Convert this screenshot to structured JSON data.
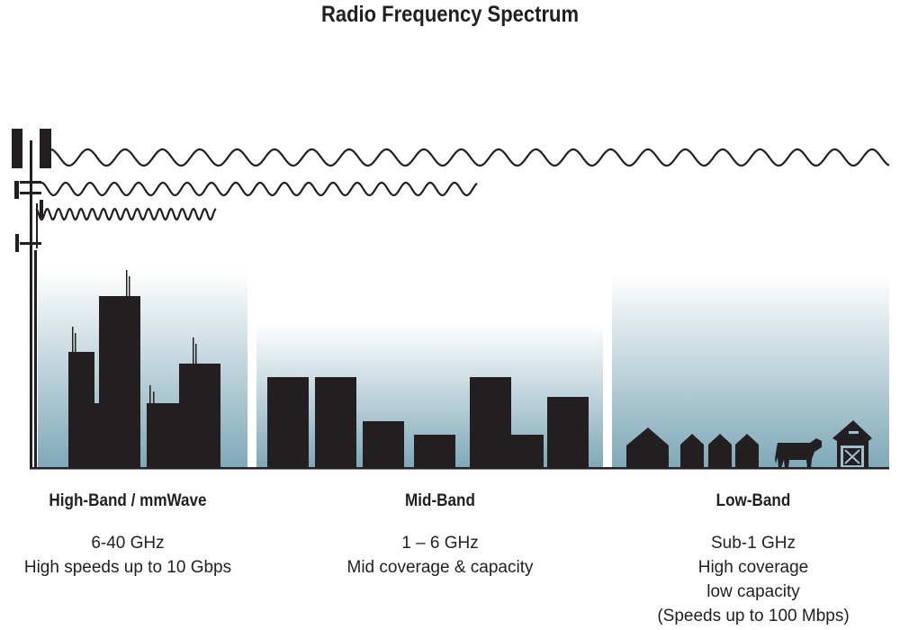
{
  "title": "Radio Frequency Spectrum",
  "colors": {
    "ink": "#231f20",
    "gradient_top": "#ffffff",
    "gradient_bottom": "#7ea8b8"
  },
  "bands": [
    {
      "name": "High-Band / mmWave",
      "lines": [
        "6-40 GHz",
        "High speeds up to 10 Gbps"
      ]
    },
    {
      "name": "Mid-Band",
      "lines": [
        "1 – 6 GHz",
        "Mid coverage & capacity"
      ]
    },
    {
      "name": "Low-Band",
      "lines": [
        "Sub-1 GHz",
        "High coverage",
        "low capacity",
        "(Speeds up to 100 Mbps)"
      ]
    }
  ],
  "icons": [
    "cell-tower-icon",
    "city-skyline-icon",
    "suburb-houses-icon",
    "cow-icon",
    "barn-icon"
  ]
}
